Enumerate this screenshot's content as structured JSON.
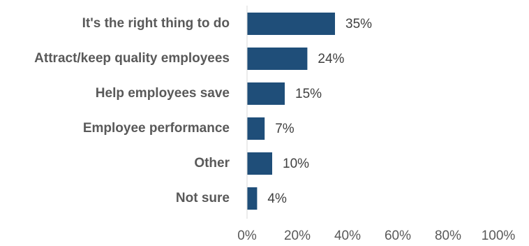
{
  "chart_data": {
    "type": "bar",
    "orientation": "horizontal",
    "categories": [
      "It's the right thing to do",
      "Attract/keep quality employees",
      "Help employees save",
      "Employee performance",
      "Other",
      "Not sure"
    ],
    "values": [
      35,
      24,
      15,
      7,
      10,
      4
    ],
    "value_labels": [
      "35%",
      "24%",
      "15%",
      "7%",
      "10%",
      "4%"
    ],
    "x_ticks": [
      "0%",
      "20%",
      "40%",
      "60%",
      "80%",
      "100%"
    ],
    "xlim": [
      0,
      100
    ],
    "bar_color": "#1f4e79",
    "grid": false,
    "legend": "none"
  }
}
